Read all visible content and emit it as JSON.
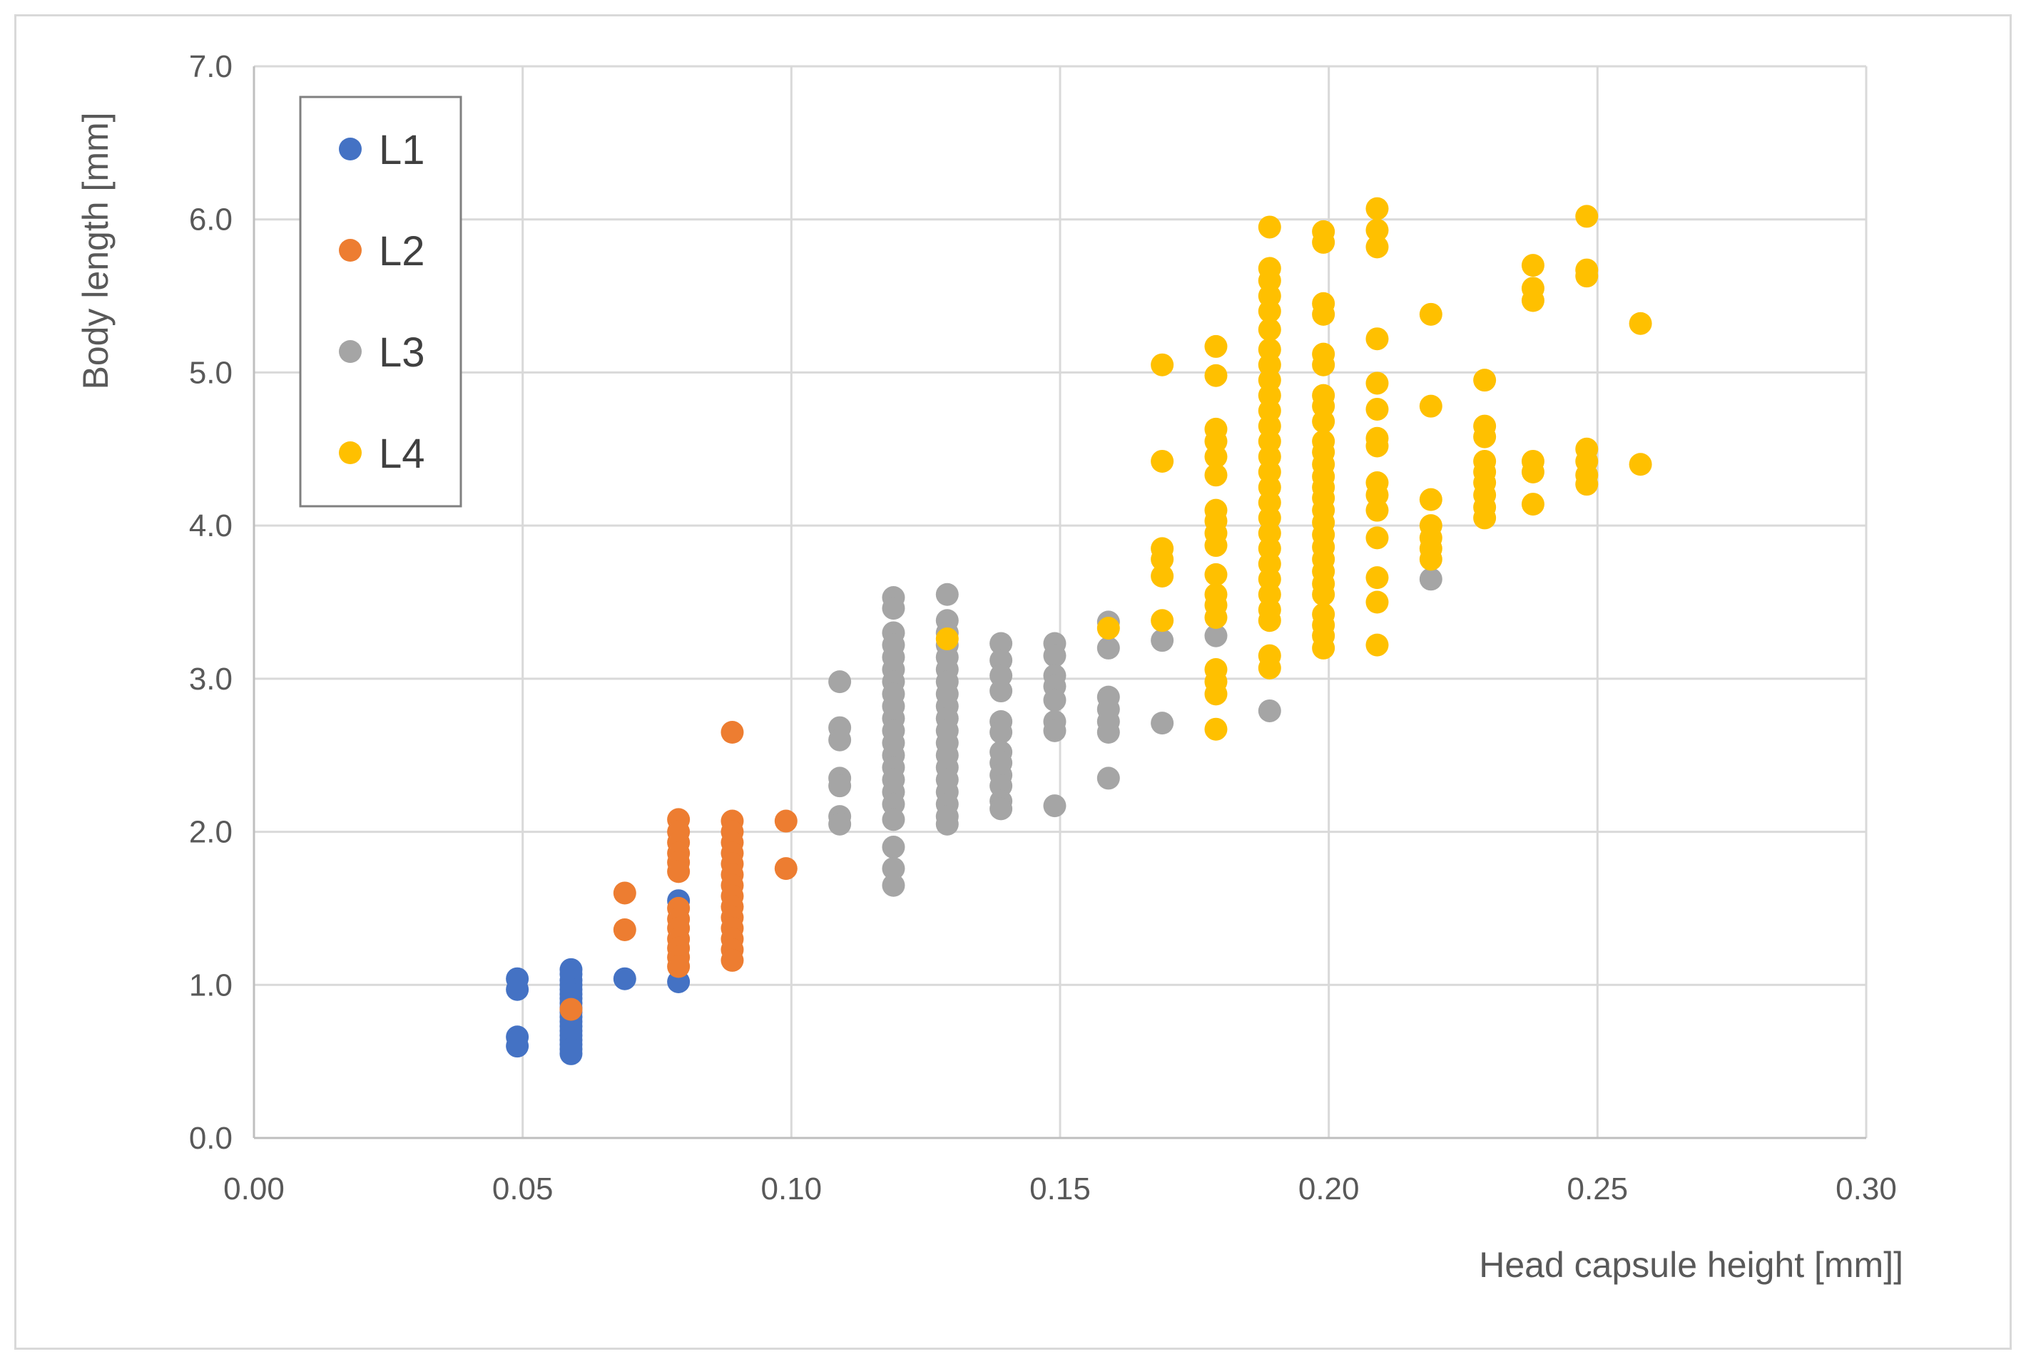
{
  "chart_data": {
    "type": "scatter",
    "title": "",
    "xlabel": "Head capsule height [mm]]",
    "ylabel": "Body length [mm]",
    "xlim": [
      0.0,
      0.3
    ],
    "ylim": [
      0.0,
      7.0
    ],
    "x_ticks": [
      "0.00",
      "0.05",
      "0.10",
      "0.15",
      "0.20",
      "0.25",
      "0.30"
    ],
    "y_ticks": [
      "0.0",
      "1.0",
      "2.0",
      "3.0",
      "4.0",
      "5.0",
      "6.0",
      "7.0"
    ],
    "grid": true,
    "legend_position": "top-left",
    "series": [
      {
        "name": "L1",
        "color": "#4472C4",
        "points": [
          [
            0.049,
            1.04
          ],
          [
            0.049,
            0.97
          ],
          [
            0.049,
            0.66
          ],
          [
            0.049,
            0.6
          ],
          [
            0.059,
            1.1
          ],
          [
            0.059,
            1.07
          ],
          [
            0.059,
            1.03
          ],
          [
            0.059,
            1.0
          ],
          [
            0.059,
            0.97
          ],
          [
            0.059,
            0.94
          ],
          [
            0.059,
            0.91
          ],
          [
            0.059,
            0.88
          ],
          [
            0.059,
            0.85
          ],
          [
            0.059,
            0.82
          ],
          [
            0.059,
            0.79
          ],
          [
            0.059,
            0.76
          ],
          [
            0.059,
            0.73
          ],
          [
            0.059,
            0.7
          ],
          [
            0.059,
            0.67
          ],
          [
            0.059,
            0.64
          ],
          [
            0.059,
            0.61
          ],
          [
            0.059,
            0.58
          ],
          [
            0.059,
            0.55
          ],
          [
            0.069,
            1.04
          ],
          [
            0.079,
            1.55
          ],
          [
            0.079,
            1.02
          ]
        ]
      },
      {
        "name": "L2",
        "color": "#ED7D31",
        "points": [
          [
            0.059,
            0.84
          ],
          [
            0.069,
            1.6
          ],
          [
            0.069,
            1.36
          ],
          [
            0.079,
            2.08
          ],
          [
            0.079,
            2.0
          ],
          [
            0.079,
            1.93
          ],
          [
            0.079,
            1.86
          ],
          [
            0.079,
            1.8
          ],
          [
            0.079,
            1.74
          ],
          [
            0.079,
            1.5
          ],
          [
            0.079,
            1.43
          ],
          [
            0.079,
            1.37
          ],
          [
            0.079,
            1.3
          ],
          [
            0.079,
            1.24
          ],
          [
            0.079,
            1.18
          ],
          [
            0.079,
            1.12
          ],
          [
            0.089,
            2.65
          ],
          [
            0.089,
            2.07
          ],
          [
            0.089,
            2.0
          ],
          [
            0.089,
            1.93
          ],
          [
            0.089,
            1.86
          ],
          [
            0.089,
            1.79
          ],
          [
            0.089,
            1.72
          ],
          [
            0.089,
            1.65
          ],
          [
            0.089,
            1.58
          ],
          [
            0.089,
            1.51
          ],
          [
            0.089,
            1.44
          ],
          [
            0.089,
            1.37
          ],
          [
            0.089,
            1.3
          ],
          [
            0.089,
            1.23
          ],
          [
            0.089,
            1.16
          ],
          [
            0.099,
            2.07
          ],
          [
            0.099,
            1.76
          ]
        ]
      },
      {
        "name": "L3",
        "color": "#A5A5A5",
        "points": [
          [
            0.109,
            2.98
          ],
          [
            0.109,
            2.68
          ],
          [
            0.109,
            2.6
          ],
          [
            0.109,
            2.35
          ],
          [
            0.109,
            2.3
          ],
          [
            0.109,
            2.1
          ],
          [
            0.109,
            2.05
          ],
          [
            0.119,
            3.53
          ],
          [
            0.119,
            3.46
          ],
          [
            0.119,
            3.3
          ],
          [
            0.119,
            3.22
          ],
          [
            0.119,
            3.14
          ],
          [
            0.119,
            3.06
          ],
          [
            0.119,
            2.98
          ],
          [
            0.119,
            2.9
          ],
          [
            0.119,
            2.82
          ],
          [
            0.119,
            2.74
          ],
          [
            0.119,
            2.66
          ],
          [
            0.119,
            2.58
          ],
          [
            0.119,
            2.5
          ],
          [
            0.119,
            2.42
          ],
          [
            0.119,
            2.34
          ],
          [
            0.119,
            2.26
          ],
          [
            0.119,
            2.18
          ],
          [
            0.119,
            2.08
          ],
          [
            0.119,
            1.9
          ],
          [
            0.119,
            1.76
          ],
          [
            0.119,
            1.65
          ],
          [
            0.129,
            3.55
          ],
          [
            0.129,
            3.38
          ],
          [
            0.129,
            3.3
          ],
          [
            0.129,
            3.22
          ],
          [
            0.129,
            3.14
          ],
          [
            0.129,
            3.06
          ],
          [
            0.129,
            2.98
          ],
          [
            0.129,
            2.9
          ],
          [
            0.129,
            2.82
          ],
          [
            0.129,
            2.74
          ],
          [
            0.129,
            2.66
          ],
          [
            0.129,
            2.58
          ],
          [
            0.129,
            2.5
          ],
          [
            0.129,
            2.42
          ],
          [
            0.129,
            2.34
          ],
          [
            0.129,
            2.26
          ],
          [
            0.129,
            2.18
          ],
          [
            0.129,
            2.1
          ],
          [
            0.129,
            2.05
          ],
          [
            0.139,
            3.23
          ],
          [
            0.139,
            3.12
          ],
          [
            0.139,
            3.02
          ],
          [
            0.139,
            2.92
          ],
          [
            0.139,
            2.72
          ],
          [
            0.139,
            2.65
          ],
          [
            0.139,
            2.52
          ],
          [
            0.139,
            2.45
          ],
          [
            0.139,
            2.37
          ],
          [
            0.139,
            2.3
          ],
          [
            0.139,
            2.2
          ],
          [
            0.139,
            2.15
          ],
          [
            0.149,
            3.23
          ],
          [
            0.149,
            3.15
          ],
          [
            0.149,
            3.02
          ],
          [
            0.149,
            2.95
          ],
          [
            0.149,
            2.86
          ],
          [
            0.149,
            2.72
          ],
          [
            0.149,
            2.66
          ],
          [
            0.149,
            2.17
          ],
          [
            0.159,
            3.37
          ],
          [
            0.159,
            3.2
          ],
          [
            0.159,
            2.88
          ],
          [
            0.159,
            2.8
          ],
          [
            0.159,
            2.72
          ],
          [
            0.159,
            2.65
          ],
          [
            0.159,
            2.35
          ],
          [
            0.169,
            3.25
          ],
          [
            0.169,
            2.71
          ],
          [
            0.179,
            3.28
          ],
          [
            0.189,
            2.79
          ],
          [
            0.219,
            3.65
          ]
        ]
      },
      {
        "name": "L4",
        "color": "#FFC000",
        "points": [
          [
            0.129,
            3.26
          ],
          [
            0.159,
            3.33
          ],
          [
            0.169,
            5.05
          ],
          [
            0.169,
            4.42
          ],
          [
            0.169,
            3.85
          ],
          [
            0.169,
            3.78
          ],
          [
            0.169,
            3.67
          ],
          [
            0.169,
            3.38
          ],
          [
            0.179,
            5.17
          ],
          [
            0.179,
            4.98
          ],
          [
            0.179,
            4.63
          ],
          [
            0.179,
            4.55
          ],
          [
            0.179,
            4.45
          ],
          [
            0.179,
            4.33
          ],
          [
            0.179,
            4.1
          ],
          [
            0.179,
            4.03
          ],
          [
            0.179,
            3.95
          ],
          [
            0.179,
            3.87
          ],
          [
            0.179,
            3.68
          ],
          [
            0.179,
            3.55
          ],
          [
            0.179,
            3.48
          ],
          [
            0.179,
            3.4
          ],
          [
            0.179,
            3.06
          ],
          [
            0.179,
            2.98
          ],
          [
            0.179,
            2.9
          ],
          [
            0.179,
            2.67
          ],
          [
            0.189,
            5.95
          ],
          [
            0.189,
            5.68
          ],
          [
            0.189,
            5.6
          ],
          [
            0.189,
            5.5
          ],
          [
            0.189,
            5.4
          ],
          [
            0.189,
            5.28
          ],
          [
            0.189,
            5.15
          ],
          [
            0.189,
            5.05
          ],
          [
            0.189,
            4.95
          ],
          [
            0.189,
            4.85
          ],
          [
            0.189,
            4.75
          ],
          [
            0.189,
            4.65
          ],
          [
            0.189,
            4.55
          ],
          [
            0.189,
            4.45
          ],
          [
            0.189,
            4.35
          ],
          [
            0.189,
            4.25
          ],
          [
            0.189,
            4.15
          ],
          [
            0.189,
            4.05
          ],
          [
            0.189,
            3.95
          ],
          [
            0.189,
            3.85
          ],
          [
            0.189,
            3.75
          ],
          [
            0.189,
            3.65
          ],
          [
            0.189,
            3.55
          ],
          [
            0.189,
            3.45
          ],
          [
            0.189,
            3.38
          ],
          [
            0.189,
            3.15
          ],
          [
            0.189,
            3.07
          ],
          [
            0.199,
            5.92
          ],
          [
            0.199,
            5.85
          ],
          [
            0.199,
            5.45
          ],
          [
            0.199,
            5.38
          ],
          [
            0.199,
            5.12
          ],
          [
            0.199,
            5.05
          ],
          [
            0.199,
            4.85
          ],
          [
            0.199,
            4.78
          ],
          [
            0.199,
            4.68
          ],
          [
            0.199,
            4.55
          ],
          [
            0.199,
            4.48
          ],
          [
            0.199,
            4.4
          ],
          [
            0.199,
            4.32
          ],
          [
            0.199,
            4.25
          ],
          [
            0.199,
            4.18
          ],
          [
            0.199,
            4.1
          ],
          [
            0.199,
            4.02
          ],
          [
            0.199,
            3.94
          ],
          [
            0.199,
            3.86
          ],
          [
            0.199,
            3.78
          ],
          [
            0.199,
            3.7
          ],
          [
            0.199,
            3.62
          ],
          [
            0.199,
            3.55
          ],
          [
            0.199,
            3.42
          ],
          [
            0.199,
            3.35
          ],
          [
            0.199,
            3.28
          ],
          [
            0.199,
            3.2
          ],
          [
            0.209,
            6.07
          ],
          [
            0.209,
            5.93
          ],
          [
            0.209,
            5.82
          ],
          [
            0.209,
            5.22
          ],
          [
            0.209,
            4.93
          ],
          [
            0.209,
            4.76
          ],
          [
            0.209,
            4.57
          ],
          [
            0.209,
            4.52
          ],
          [
            0.209,
            4.28
          ],
          [
            0.209,
            4.2
          ],
          [
            0.209,
            4.1
          ],
          [
            0.209,
            3.92
          ],
          [
            0.209,
            3.66
          ],
          [
            0.209,
            3.5
          ],
          [
            0.209,
            3.22
          ],
          [
            0.219,
            5.38
          ],
          [
            0.219,
            4.78
          ],
          [
            0.219,
            4.17
          ],
          [
            0.219,
            4.0
          ],
          [
            0.219,
            3.92
          ],
          [
            0.219,
            3.85
          ],
          [
            0.219,
            3.78
          ],
          [
            0.229,
            4.95
          ],
          [
            0.229,
            4.65
          ],
          [
            0.229,
            4.58
          ],
          [
            0.229,
            4.42
          ],
          [
            0.229,
            4.35
          ],
          [
            0.229,
            4.28
          ],
          [
            0.229,
            4.2
          ],
          [
            0.229,
            4.12
          ],
          [
            0.229,
            4.05
          ],
          [
            0.238,
            5.7
          ],
          [
            0.238,
            5.55
          ],
          [
            0.238,
            5.47
          ],
          [
            0.238,
            4.42
          ],
          [
            0.238,
            4.35
          ],
          [
            0.238,
            4.14
          ],
          [
            0.248,
            6.02
          ],
          [
            0.248,
            5.67
          ],
          [
            0.248,
            5.63
          ],
          [
            0.248,
            4.5
          ],
          [
            0.248,
            4.42
          ],
          [
            0.248,
            4.33
          ],
          [
            0.248,
            4.27
          ],
          [
            0.258,
            5.32
          ],
          [
            0.258,
            4.4
          ]
        ]
      }
    ]
  }
}
